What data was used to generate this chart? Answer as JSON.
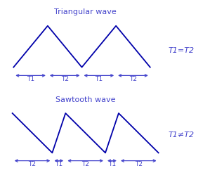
{
  "tri_title": "Triangular wave",
  "saw_title": "Sawtooth wave",
  "tri_label_right": "T1=T2",
  "saw_label_right": "T1≠T2",
  "wave_color": "#0000AA",
  "text_color": "#4444CC",
  "bg_color": "#FFFFFF",
  "tri_x": [
    0,
    1,
    2,
    3,
    4
  ],
  "tri_y": [
    0,
    1,
    0,
    1,
    0
  ],
  "saw_x": [
    0,
    1.5,
    2.0,
    3.5,
    4.0,
    5.5
  ],
  "saw_y": [
    1,
    0,
    1,
    0,
    1,
    0
  ],
  "tri_timing_str": "←T1→←T2→←T1→←T2→",
  "saw_timing_str": "←T2 →←T1→← T2→←T1→←T2 →"
}
